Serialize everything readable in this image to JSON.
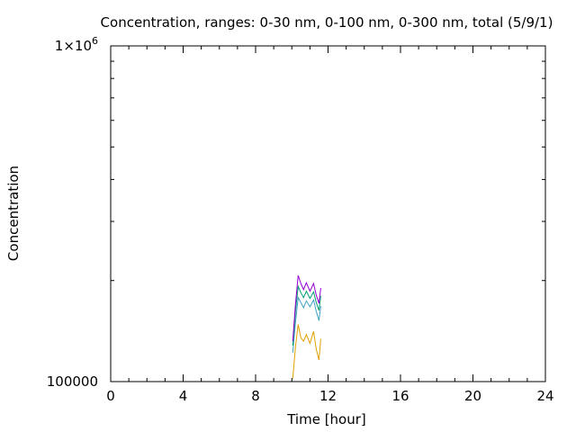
{
  "chart_data": {
    "type": "line",
    "title": "Concentration, ranges: 0-30 nm, 0-100 nm, 0-300 nm, total (5/9/1)",
    "xlabel": "Time [hour]",
    "ylabel": "Concentration",
    "xlim": [
      0,
      24
    ],
    "ylim": [
      100000,
      1000000
    ],
    "yscale": "log",
    "x_ticks": [
      0,
      4,
      8,
      12,
      16,
      20,
      24
    ],
    "x_tick_labels": [
      "0",
      "4",
      "8",
      "12",
      "16",
      "20",
      "24"
    ],
    "y_tick_labels": [
      {
        "value": 100000,
        "label": "100000"
      },
      {
        "value": 1000000,
        "label": "1×10^6"
      }
    ],
    "grid": false,
    "legend": "none",
    "series": [
      {
        "color": "#e0a000",
        "x": [
          10.05,
          10.2,
          10.35,
          10.5,
          10.65,
          10.8,
          11.0,
          11.2,
          11.35,
          11.5,
          11.6
        ],
        "y": [
          102000,
          127000,
          148000,
          135000,
          132000,
          138000,
          130000,
          141000,
          125000,
          116000,
          134000
        ]
      },
      {
        "color": "#40a0c0",
        "x": [
          10.05,
          10.2,
          10.35,
          10.5,
          10.65,
          10.8,
          11.0,
          11.2,
          11.35,
          11.5,
          11.6
        ],
        "y": [
          122000,
          150000,
          178000,
          172000,
          166000,
          174000,
          167000,
          175000,
          162000,
          152000,
          168000
        ]
      },
      {
        "color": "#009e73",
        "x": [
          10.05,
          10.2,
          10.35,
          10.5,
          10.65,
          10.8,
          11.0,
          11.2,
          11.35,
          11.5,
          11.6
        ],
        "y": [
          128000,
          162000,
          192000,
          184000,
          178000,
          186000,
          177000,
          185000,
          172000,
          163000,
          180000
        ]
      },
      {
        "color": "#9400d3",
        "x": [
          10.05,
          10.2,
          10.35,
          10.5,
          10.65,
          10.8,
          11.0,
          11.2,
          11.35,
          11.5,
          11.6
        ],
        "y": [
          132000,
          170000,
          207000,
          196000,
          188000,
          197000,
          186000,
          196000,
          181000,
          171000,
          190000
        ]
      }
    ]
  }
}
